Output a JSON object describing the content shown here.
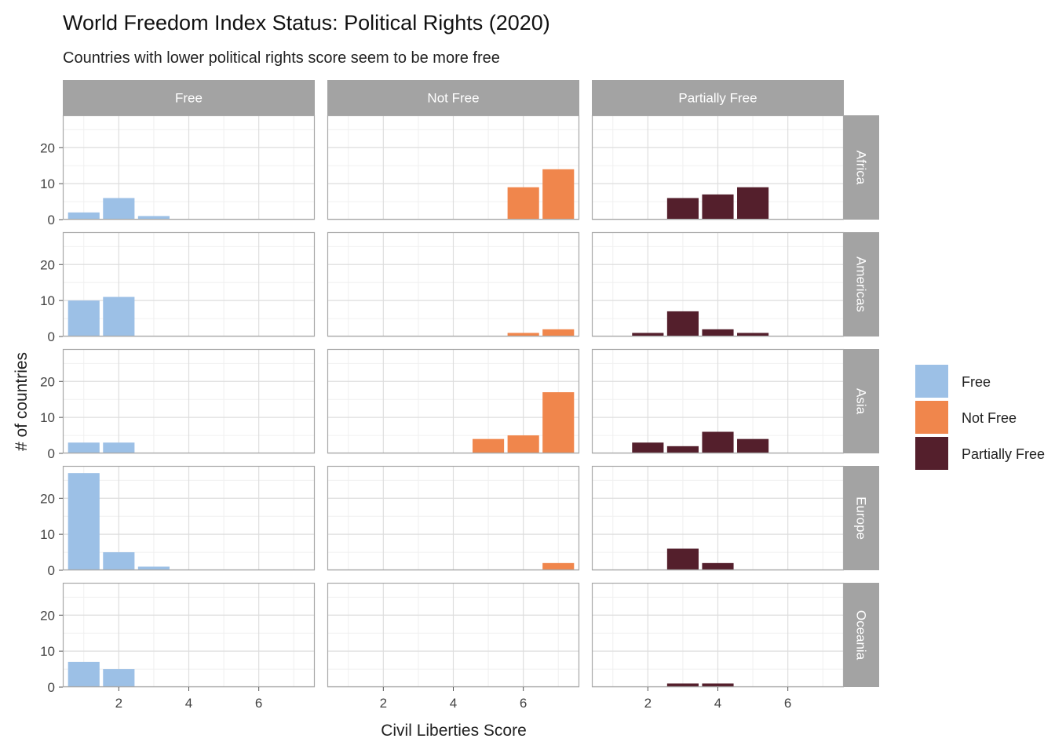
{
  "chart_data": {
    "type": "bar",
    "title": "World Freedom Index Status: Political Rights (2020)",
    "subtitle": "Countries with lower political rights score seem to be more free",
    "xlabel": "Civil Liberties Score",
    "ylabel": "# of countries",
    "xlim": [
      0.4,
      7.6
    ],
    "ylim": [
      0,
      29
    ],
    "x_ticks": [
      2,
      4,
      6
    ],
    "y_ticks": [
      0,
      10,
      20
    ],
    "grid": true,
    "legend_position": "right",
    "facet_columns": [
      "Free",
      "Not Free",
      "Partially Free"
    ],
    "facet_rows": [
      "Africa",
      "Americas",
      "Asia",
      "Europe",
      "Oceania"
    ],
    "series": [
      {
        "name": "Free",
        "color": "#9cc0e6",
        "panels": {
          "Africa": [
            {
              "x": 1,
              "y": 2
            },
            {
              "x": 2,
              "y": 6
            },
            {
              "x": 3,
              "y": 1
            }
          ],
          "Americas": [
            {
              "x": 1,
              "y": 10
            },
            {
              "x": 2,
              "y": 11
            }
          ],
          "Asia": [
            {
              "x": 1,
              "y": 3
            },
            {
              "x": 2,
              "y": 3
            }
          ],
          "Europe": [
            {
              "x": 1,
              "y": 27
            },
            {
              "x": 2,
              "y": 5
            },
            {
              "x": 3,
              "y": 1
            }
          ],
          "Oceania": [
            {
              "x": 1,
              "y": 7
            },
            {
              "x": 2,
              "y": 5
            }
          ]
        }
      },
      {
        "name": "Not Free",
        "color": "#f0864c",
        "panels": {
          "Africa": [
            {
              "x": 6,
              "y": 9
            },
            {
              "x": 7,
              "y": 14
            }
          ],
          "Americas": [
            {
              "x": 6,
              "y": 1
            },
            {
              "x": 7,
              "y": 2
            }
          ],
          "Asia": [
            {
              "x": 5,
              "y": 4
            },
            {
              "x": 6,
              "y": 5
            },
            {
              "x": 7,
              "y": 17
            }
          ],
          "Europe": [
            {
              "x": 7,
              "y": 2
            }
          ],
          "Oceania": []
        }
      },
      {
        "name": "Partially Free",
        "color": "#541f2c",
        "panels": {
          "Africa": [
            {
              "x": 3,
              "y": 6
            },
            {
              "x": 4,
              "y": 7
            },
            {
              "x": 5,
              "y": 9
            }
          ],
          "Americas": [
            {
              "x": 2,
              "y": 1
            },
            {
              "x": 3,
              "y": 7
            },
            {
              "x": 4,
              "y": 2
            },
            {
              "x": 5,
              "y": 1
            }
          ],
          "Asia": [
            {
              "x": 2,
              "y": 3
            },
            {
              "x": 3,
              "y": 2
            },
            {
              "x": 4,
              "y": 6
            },
            {
              "x": 5,
              "y": 4
            }
          ],
          "Europe": [
            {
              "x": 3,
              "y": 6
            },
            {
              "x": 4,
              "y": 2
            }
          ],
          "Oceania": [
            {
              "x": 3,
              "y": 1
            },
            {
              "x": 4,
              "y": 1
            }
          ]
        }
      }
    ]
  }
}
